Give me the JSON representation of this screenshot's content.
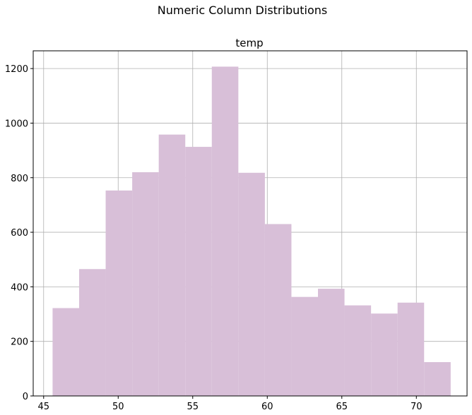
{
  "chart_data": {
    "type": "bar",
    "suptitle": "Numeric Column Distributions",
    "title": "temp",
    "xlabel": "",
    "ylabel": "",
    "bar_color": "#d8bfd8",
    "grid": true,
    "xlim": [
      44.3,
      73.4
    ],
    "ylim": [
      0,
      1265
    ],
    "x_ticks": [
      45,
      50,
      55,
      60,
      65,
      70
    ],
    "y_ticks": [
      0,
      200,
      400,
      600,
      800,
      1000,
      1200
    ],
    "bin_edges": [
      45.6,
      47.38,
      49.16,
      50.94,
      52.72,
      54.5,
      56.28,
      58.06,
      59.84,
      61.62,
      63.4,
      65.18,
      66.96,
      68.74,
      70.52,
      72.3
    ],
    "values": [
      322,
      465,
      753,
      820,
      958,
      913,
      1207,
      818,
      630,
      363,
      393,
      332,
      302,
      342,
      124
    ]
  }
}
